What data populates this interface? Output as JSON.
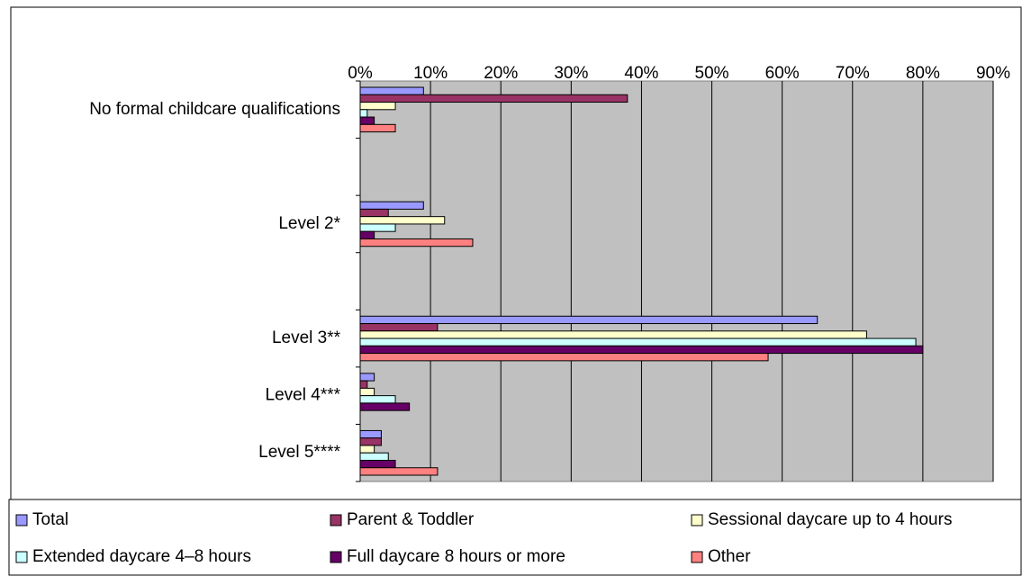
{
  "chart_data": {
    "type": "hbar",
    "categories": [
      "No formal childcare qualifications",
      null,
      "Level 2*",
      null,
      "Level 3**",
      "Level 4***",
      "Level 5****"
    ],
    "series": [
      {
        "name": "Total",
        "color": "#9999ff",
        "values": [
          9,
          null,
          9,
          null,
          65,
          2,
          3
        ]
      },
      {
        "name": "Parent & Toddler",
        "color": "#993366",
        "values": [
          38,
          null,
          4,
          null,
          11,
          1,
          3
        ]
      },
      {
        "name": "Sessional daycare up to 4 hours",
        "color": "#ffffcc",
        "values": [
          5,
          null,
          12,
          null,
          72,
          2,
          2
        ]
      },
      {
        "name": "Extended daycare 4–8 hours",
        "color": "#ccffff",
        "values": [
          1,
          null,
          5,
          null,
          79,
          5,
          4
        ]
      },
      {
        "name": "Full daycare 8 hours or more",
        "color": "#660066",
        "values": [
          2,
          null,
          2,
          null,
          80,
          7,
          5
        ]
      },
      {
        "name": "Other",
        "color": "#ff8080",
        "values": [
          5,
          null,
          16,
          null,
          58,
          0,
          11
        ]
      }
    ],
    "xlim": [
      0,
      90
    ],
    "xticks": [
      {
        "value": 0,
        "label": "0%"
      },
      {
        "value": 10,
        "label": "10%"
      },
      {
        "value": 20,
        "label": "20%"
      },
      {
        "value": 30,
        "label": "30%"
      },
      {
        "value": 40,
        "label": "40%"
      },
      {
        "value": 50,
        "label": "50%"
      },
      {
        "value": 60,
        "label": "60%"
      },
      {
        "value": 70,
        "label": "70%"
      },
      {
        "value": 80,
        "label": "80%"
      },
      {
        "value": 90,
        "label": "90%"
      }
    ],
    "grid": true,
    "plot_background": "#c0c0c0",
    "legend": "bottom"
  }
}
